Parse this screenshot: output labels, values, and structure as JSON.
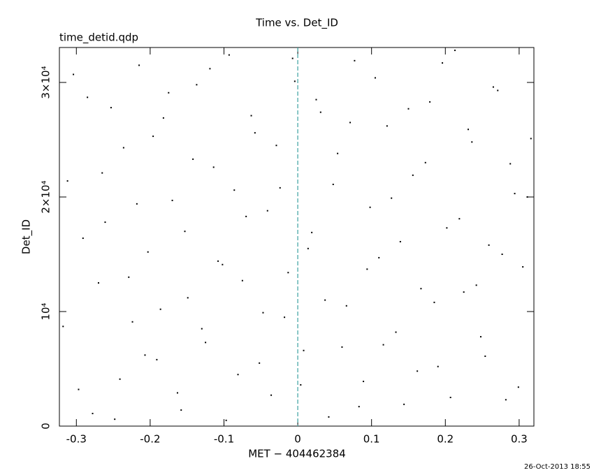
{
  "chart_data": {
    "type": "scatter",
    "title": "Time vs. Det_ID",
    "subtitle": "time_detid.qdp",
    "xlabel": "MET − 404462384",
    "ylabel": "Det_ID",
    "timestamp": "26-Oct-2013 18:55",
    "xlim": [
      -0.323,
      0.32
    ],
    "ylim": [
      0,
      33050
    ],
    "xticks": [
      -0.3,
      -0.2,
      -0.1,
      0,
      0.1,
      0.2,
      0.3
    ],
    "yticks": [
      0,
      {
        "value": 10000,
        "label": "10⁴"
      },
      {
        "value": 20000,
        "label": "2×10⁴"
      },
      {
        "value": 30000,
        "label": "3×10⁴"
      }
    ],
    "vline": 0,
    "vline_color": "#3a9fa0",
    "series": [
      {
        "color": "#000000",
        "x": [
          -0.312,
          -0.297,
          -0.285,
          -0.27,
          -0.261,
          -0.248,
          -0.236,
          -0.224,
          -0.215,
          -0.203,
          -0.191,
          -0.182,
          -0.17,
          -0.158,
          -0.149,
          -0.137,
          -0.125,
          -0.114,
          -0.102,
          -0.093,
          -0.081,
          -0.07,
          -0.058,
          -0.047,
          -0.036,
          -0.024,
          -0.013,
          -0.004,
          0.008,
          0.019,
          0.031,
          0.042,
          0.054,
          0.066,
          0.077,
          0.089,
          0.098,
          0.11,
          0.121,
          0.133,
          0.144,
          0.156,
          0.167,
          0.179,
          0.19,
          0.202,
          0.213,
          0.225,
          0.236,
          0.248,
          0.259,
          0.271,
          0.282,
          0.294,
          0.305,
          0.316,
          -0.318,
          -0.304,
          -0.291,
          -0.278,
          -0.265,
          -0.253,
          -0.241,
          -0.229,
          -0.218,
          -0.207,
          -0.196,
          -0.186,
          -0.175,
          -0.163,
          -0.153,
          -0.142,
          -0.13,
          -0.119,
          -0.108,
          -0.097,
          -0.086,
          -0.075,
          -0.063,
          -0.052,
          -0.041,
          -0.029,
          -0.018,
          -0.007,
          0.004,
          0.014,
          0.025,
          0.037,
          0.048,
          0.06,
          0.071,
          0.083,
          0.094,
          0.105,
          0.116,
          0.127,
          0.139,
          0.15,
          0.162,
          0.173,
          0.185,
          0.196,
          0.207,
          0.219,
          0.231,
          0.242,
          0.254,
          0.265,
          0.277,
          0.288,
          0.299,
          0.311
        ],
        "values": [
          21400,
          3200,
          28700,
          12500,
          17800,
          600,
          24300,
          9100,
          31500,
          15200,
          5800,
          26900,
          19700,
          1400,
          11200,
          29800,
          7300,
          22600,
          14100,
          32400,
          4500,
          18300,
          25600,
          9900,
          2700,
          20800,
          13400,
          30100,
          6600,
          16900,
          27400,
          800,
          23800,
          10500,
          31900,
          3900,
          19100,
          14700,
          26200,
          8200,
          1900,
          21900,
          12000,
          28300,
          5200,
          17300,
          32800,
          11700,
          24800,
          7800,
          15800,
          29300,
          2300,
          20300,
          13900,
          25100,
          8700,
          30700,
          16400,
          1100,
          22100,
          27800,
          4100,
          13000,
          19400,
          6200,
          25300,
          10200,
          29100,
          2900,
          17000,
          23300,
          8500,
          31200,
          14400,
          500,
          20600,
          12700,
          27100,
          5500,
          18800,
          24500,
          9500,
          32100,
          3600,
          15500,
          28500,
          11000,
          21100,
          6900,
          26500,
          1700,
          13700,
          30400,
          7100,
          19900,
          16100,
          27700,
          4800,
          23000,
          10800,
          31700,
          2500,
          18100,
          25900,
          12300,
          6100,
          29600,
          15000,
          22900,
          3400,
          20000
        ]
      }
    ]
  }
}
